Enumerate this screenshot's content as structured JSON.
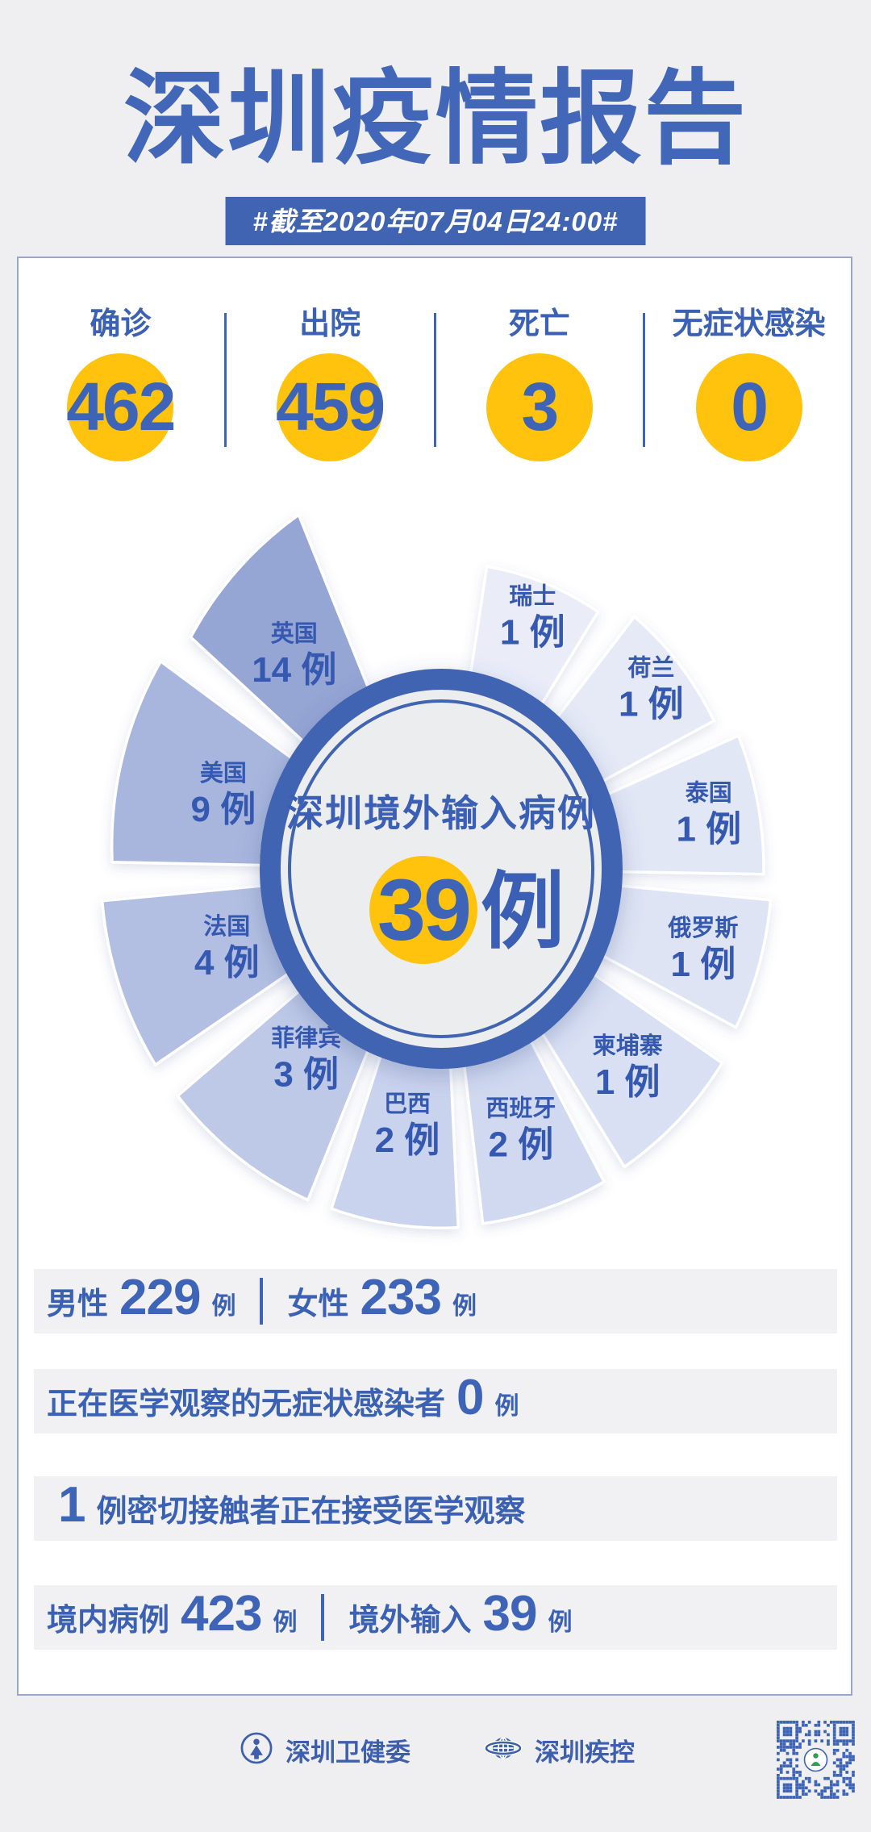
{
  "header": {
    "title": "深圳疫情报告",
    "date_badge": "#截至2020年07月04日24:00#"
  },
  "summary": {
    "items": [
      {
        "label": "确诊",
        "value": "462"
      },
      {
        "label": "出院",
        "value": "459"
      },
      {
        "label": "死亡",
        "value": "3"
      },
      {
        "label": "无症状感染",
        "value": "0"
      }
    ]
  },
  "chart_data": {
    "type": "pie",
    "title": "深圳境外输入病例",
    "center_label": "深圳境外输入病例",
    "total_value": "39",
    "unit": "例",
    "legend_position": "labels-on-slices",
    "series": [
      {
        "name": "瑞士",
        "value": 1,
        "color": "#EAEDF8"
      },
      {
        "name": "荷兰",
        "value": 1,
        "color": "#E6EAF7"
      },
      {
        "name": "泰国",
        "value": 1,
        "color": "#E2E7F6"
      },
      {
        "name": "俄罗斯",
        "value": 1,
        "color": "#DEE4F4"
      },
      {
        "name": "柬埔寨",
        "value": 1,
        "color": "#D9E0F3"
      },
      {
        "name": "西班牙",
        "value": 2,
        "color": "#D1D9F0"
      },
      {
        "name": "巴西",
        "value": 2,
        "color": "#CAD3EE"
      },
      {
        "name": "菲律宾",
        "value": 3,
        "color": "#BDC9E7"
      },
      {
        "name": "法国",
        "value": 4,
        "color": "#B2BFE2"
      },
      {
        "name": "美国",
        "value": 9,
        "color": "#A8B6DD"
      },
      {
        "name": "英国",
        "value": 14,
        "color": "#95A5D4"
      }
    ]
  },
  "detail_rows": [
    {
      "segments": [
        {
          "t": "label",
          "v": "男性"
        },
        {
          "t": "num",
          "v": "229"
        },
        {
          "t": "unit",
          "v": "例"
        },
        {
          "t": "div"
        },
        {
          "t": "label",
          "v": "女性"
        },
        {
          "t": "num",
          "v": "233"
        },
        {
          "t": "unit",
          "v": "例"
        }
      ]
    },
    {
      "segments": [
        {
          "t": "label",
          "v": "正在医学观察的无症状感染者"
        },
        {
          "t": "num",
          "v": "0"
        },
        {
          "t": "unit",
          "v": "例"
        }
      ]
    },
    {
      "segments": [
        {
          "t": "num",
          "v": "1"
        },
        {
          "t": "label",
          "v": "例密切接触者正在接受医学观察"
        }
      ]
    },
    {
      "segments": [
        {
          "t": "label",
          "v": "境内病例"
        },
        {
          "t": "num",
          "v": "423"
        },
        {
          "t": "unit",
          "v": "例"
        },
        {
          "t": "div"
        },
        {
          "t": "label",
          "v": "境外输入"
        },
        {
          "t": "num",
          "v": "39"
        },
        {
          "t": "unit",
          "v": "例"
        }
      ]
    }
  ],
  "footer": {
    "org_health": "深圳卫健委",
    "org_cdc": "深圳疾控"
  },
  "colors": {
    "page_bg": "#EFEFF1",
    "card_bg": "#FFFFFF",
    "card_border": "#9AA6CE",
    "primary_blue": "#3B61B5",
    "number_blue": "#3E64B8",
    "deep_blue": "#4164B2",
    "title_blue": "#4267B8",
    "accent_yellow": "#FFC20D",
    "row_bg": "#F1F1F3",
    "center_fill": "#ECEDEF"
  }
}
